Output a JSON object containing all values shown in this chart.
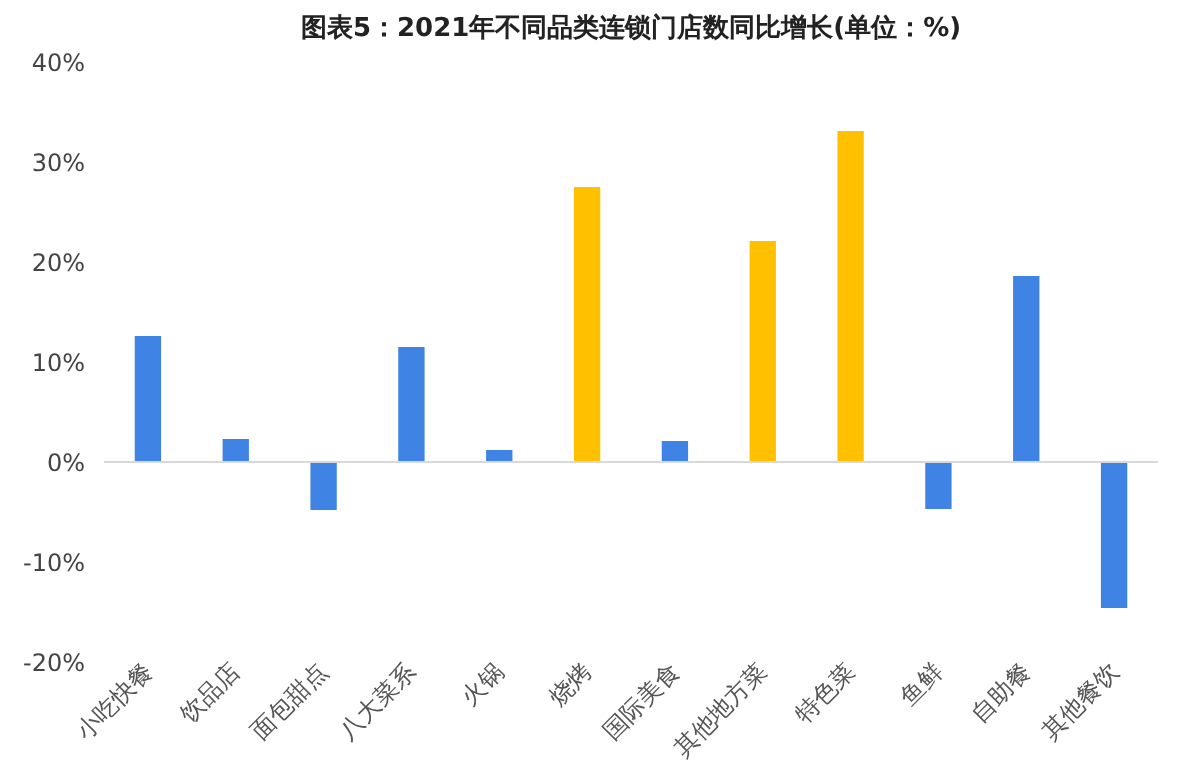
{
  "chart_data": {
    "type": "bar",
    "title": "图表5：2021年不同品类连锁门店数同比增长(单位：%)",
    "categories": [
      "小吃快餐",
      "饮品店",
      "面包甜点",
      "八大菜系",
      "火锅",
      "烧烤",
      "国际美食",
      "其他地方菜",
      "特色菜",
      "鱼鲜",
      "自助餐",
      "其他餐饮"
    ],
    "values": [
      12.6,
      2.3,
      -4.8,
      11.5,
      1.2,
      27.5,
      2.1,
      22.1,
      33.1,
      -4.7,
      18.6,
      -14.6
    ],
    "colors": [
      "#3f84e5",
      "#3f84e5",
      "#3f84e5",
      "#3f84e5",
      "#3f84e5",
      "#ffc000",
      "#3f84e5",
      "#ffc000",
      "#ffc000",
      "#3f84e5",
      "#3f84e5",
      "#3f84e5"
    ],
    "ylim": [
      -20,
      40
    ],
    "yticks": [
      {
        "value": -20,
        "label": "-20%"
      },
      {
        "value": -10,
        "label": "-10%"
      },
      {
        "value": 0,
        "label": "0%"
      },
      {
        "value": 10,
        "label": "10%"
      },
      {
        "value": 20,
        "label": "20%"
      },
      {
        "value": 30,
        "label": "30%"
      },
      {
        "value": 40,
        "label": "40%"
      }
    ],
    "ref_lines": [
      {
        "axis": "y",
        "value": 0,
        "color": "#d9d9d9"
      }
    ]
  }
}
